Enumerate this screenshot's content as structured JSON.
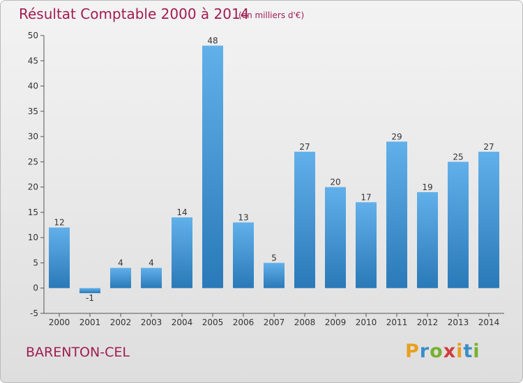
{
  "title": "Résultat Comptable 2000 à 2014",
  "subtitle": "(en milliers d'€)",
  "commune": "BARENTON-CEL",
  "brand": {
    "letters": [
      "P",
      "r",
      "o",
      "x",
      "i",
      "t",
      "i"
    ],
    "colors": [
      "#e8a020",
      "#3a8ec8",
      "#7ab030",
      "#d23c3c",
      "#e8a020",
      "#3a8ec8",
      "#7ab030"
    ]
  },
  "colors": {
    "title": "#a01c52",
    "bar_top": "#62b0ea",
    "bar_bottom": "#2a79b8"
  },
  "chart_data": {
    "type": "bar",
    "title": "Résultat Comptable 2000 à 2014",
    "xlabel": "",
    "ylabel": "",
    "categories": [
      "2000",
      "2001",
      "2002",
      "2003",
      "2004",
      "2005",
      "2006",
      "2007",
      "2008",
      "2009",
      "2010",
      "2011",
      "2012",
      "2013",
      "2014"
    ],
    "values": [
      12,
      -1,
      4,
      4,
      14,
      48,
      13,
      5,
      27,
      20,
      17,
      29,
      19,
      25,
      27
    ],
    "ylim": [
      -5,
      50
    ],
    "yticks": [
      -5,
      0,
      5,
      10,
      15,
      20,
      25,
      30,
      35,
      40,
      45,
      50
    ],
    "grid": false,
    "legend": "none"
  }
}
